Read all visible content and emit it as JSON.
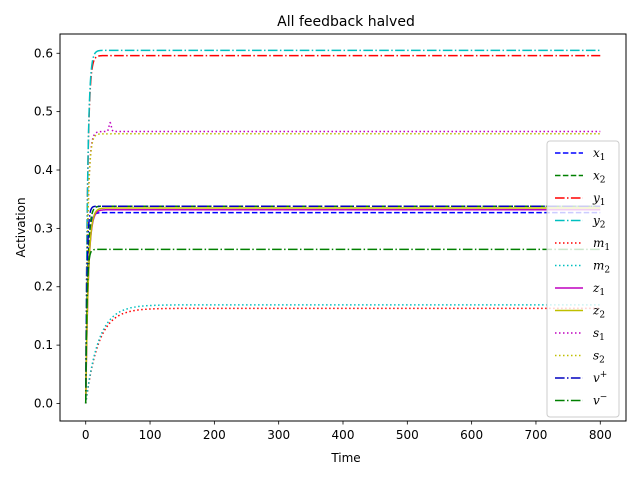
{
  "chart_data": {
    "type": "line",
    "title": "All feedback halved",
    "xlabel": "Time",
    "ylabel": "Activation",
    "xlim": [
      -40,
      840
    ],
    "ylim": [
      -0.03,
      0.633
    ],
    "xticks": [
      0,
      100,
      200,
      300,
      400,
      500,
      600,
      700,
      800
    ],
    "yticks": [
      0.0,
      0.1,
      0.2,
      0.3,
      0.4,
      0.5,
      0.6
    ],
    "ytick_labels": [
      "0.0",
      "0.1",
      "0.2",
      "0.3",
      "0.4",
      "0.5",
      "0.6"
    ],
    "grid": false,
    "legend_position": "center-right",
    "series": [
      {
        "name": "x",
        "sub": "1",
        "sup": "",
        "color": "#0000ff",
        "dash": "dashed",
        "type": "fast",
        "final": 0.327,
        "overshoot": 0.333,
        "tau": 3
      },
      {
        "name": "x",
        "sub": "2",
        "sup": "",
        "color": "#008000",
        "dash": "dashed",
        "type": "fast",
        "final": 0.338,
        "overshoot": 0.338,
        "tau": 3
      },
      {
        "name": "y",
        "sub": "1",
        "sup": "",
        "color": "#ff0000",
        "dash": "dashdot",
        "type": "fast",
        "final": 0.596,
        "overshoot": 0.596,
        "tau": 3
      },
      {
        "name": "y",
        "sub": "2",
        "sup": "",
        "color": "#00bfbf",
        "dash": "dashdot",
        "type": "fast",
        "final": 0.605,
        "overshoot": 0.605,
        "tau": 3
      },
      {
        "name": "m",
        "sub": "1",
        "sup": "",
        "color": "#ff0000",
        "dash": "dotted",
        "type": "slow",
        "final": 0.163,
        "overshoot": 0.163,
        "tau": 20
      },
      {
        "name": "m",
        "sub": "2",
        "sup": "",
        "color": "#00bfbf",
        "dash": "dotted",
        "type": "slow",
        "final": 0.169,
        "overshoot": 0.169,
        "tau": 20
      },
      {
        "name": "z",
        "sub": "1",
        "sup": "",
        "color": "#bf00bf",
        "dash": "solid",
        "type": "fast",
        "final": 0.332,
        "overshoot": 0.332,
        "tau": 4
      },
      {
        "name": "z",
        "sub": "2",
        "sup": "",
        "color": "#bfbf00",
        "dash": "solid",
        "type": "fast",
        "final": 0.335,
        "overshoot": 0.335,
        "tau": 4
      },
      {
        "name": "s",
        "sub": "1",
        "sup": "",
        "color": "#bf00bf",
        "dash": "dotted",
        "type": "bump",
        "final": 0.466,
        "overshoot": 0.481,
        "tau": 3
      },
      {
        "name": "s",
        "sub": "2",
        "sup": "",
        "color": "#bfbf00",
        "dash": "dotted",
        "type": "fast",
        "final": 0.462,
        "overshoot": 0.462,
        "tau": 3
      },
      {
        "name": "v",
        "sub": "",
        "sup": "+",
        "color": "#0000bf",
        "dash": "dashdot",
        "type": "fast",
        "final": 0.338,
        "overshoot": 0.338,
        "tau": 2
      },
      {
        "name": "v",
        "sub": "",
        "sup": "−",
        "color": "#008000",
        "dash": "dashdot",
        "type": "fast",
        "final": 0.264,
        "overshoot": 0.264,
        "tau": 2
      }
    ]
  }
}
